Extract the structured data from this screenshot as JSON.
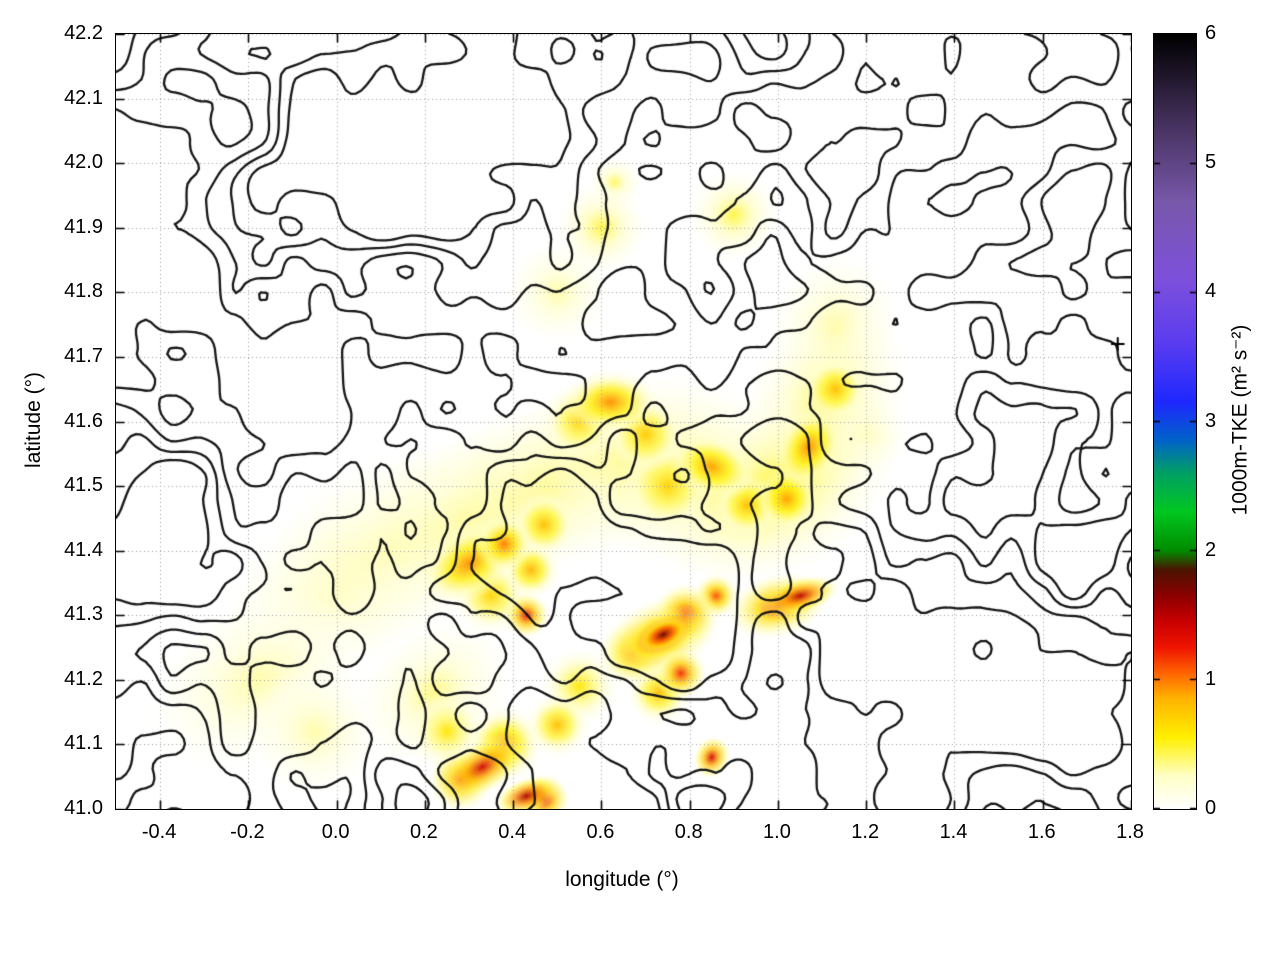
{
  "chart_data": {
    "type": "heatmap",
    "title": "",
    "xlabel": "longitude (°)",
    "ylabel": "latitude (°)",
    "xlim": [
      -0.5,
      1.8
    ],
    "ylim": [
      41.0,
      42.2
    ],
    "grid": true,
    "xticks": [
      {
        "v": -0.4,
        "label": "-0.4"
      },
      {
        "v": -0.2,
        "label": "-0.2"
      },
      {
        "v": 0.0,
        "label": "0.0"
      },
      {
        "v": 0.2,
        "label": "0.2"
      },
      {
        "v": 0.4,
        "label": "0.4"
      },
      {
        "v": 0.6,
        "label": "0.6"
      },
      {
        "v": 0.8,
        "label": "0.8"
      },
      {
        "v": 1.0,
        "label": "1.0"
      },
      {
        "v": 1.2,
        "label": "1.2"
      },
      {
        "v": 1.4,
        "label": "1.4"
      },
      {
        "v": 1.6,
        "label": "1.6"
      },
      {
        "v": 1.8,
        "label": "1.8"
      }
    ],
    "yticks": [
      {
        "v": 41.0,
        "label": "41.0"
      },
      {
        "v": 41.1,
        "label": "41.1"
      },
      {
        "v": 41.2,
        "label": "41.2"
      },
      {
        "v": 41.3,
        "label": "41.3"
      },
      {
        "v": 41.4,
        "label": "41.4"
      },
      {
        "v": 41.5,
        "label": "41.5"
      },
      {
        "v": 41.6,
        "label": "41.6"
      },
      {
        "v": 41.7,
        "label": "41.7"
      },
      {
        "v": 41.8,
        "label": "41.8"
      },
      {
        "v": 41.9,
        "label": "41.9"
      },
      {
        "v": 42.0,
        "label": "42.0"
      },
      {
        "v": 42.1,
        "label": "42.1"
      },
      {
        "v": 42.2,
        "label": "42.2"
      }
    ],
    "colorbar": {
      "label": "1000m-TKE (m² s⁻²)",
      "min": 0,
      "max": 6,
      "ticks": [
        {
          "v": 0,
          "label": "0"
        },
        {
          "v": 1,
          "label": "1"
        },
        {
          "v": 2,
          "label": "2"
        },
        {
          "v": 3,
          "label": "3"
        },
        {
          "v": 4,
          "label": "4"
        },
        {
          "v": 5,
          "label": "5"
        },
        {
          "v": 6,
          "label": "6"
        }
      ],
      "palette": [
        [
          0.0,
          "#ffffff"
        ],
        [
          0.25,
          "#ffffc8"
        ],
        [
          0.55,
          "#fff000"
        ],
        [
          0.85,
          "#ffb400"
        ],
        [
          1.05,
          "#ff6400"
        ],
        [
          1.25,
          "#f01400"
        ],
        [
          1.45,
          "#c80000"
        ],
        [
          1.65,
          "#8c0000"
        ],
        [
          1.85,
          "#4b1400"
        ],
        [
          2.0,
          "#008c00"
        ],
        [
          2.3,
          "#00c820"
        ],
        [
          2.6,
          "#00a064"
        ],
        [
          2.85,
          "#0064c8"
        ],
        [
          3.15,
          "#1e28ff"
        ],
        [
          3.6,
          "#5a3cf0"
        ],
        [
          4.1,
          "#7d50dc"
        ],
        [
          4.7,
          "#7858aa"
        ],
        [
          5.3,
          "#46325f"
        ],
        [
          6.0,
          "#000000"
        ]
      ]
    },
    "marker": {
      "x": 1.77,
      "y": 41.72,
      "symbol": "+"
    },
    "heat_blobs": [
      {
        "x": 0.12,
        "y": 41.4,
        "v": 0.35,
        "r": 0.14,
        "sx": 1.8,
        "rot": 25
      },
      {
        "x": 0.3,
        "y": 41.45,
        "v": 0.4,
        "r": 0.13,
        "sx": 1.8,
        "rot": 20
      },
      {
        "x": 0.48,
        "y": 41.5,
        "v": 0.45,
        "r": 0.13,
        "sx": 1.8,
        "rot": 15
      },
      {
        "x": 0.66,
        "y": 41.54,
        "v": 0.45,
        "r": 0.13,
        "sx": 1.8,
        "rot": 10
      },
      {
        "x": 0.84,
        "y": 41.5,
        "v": 0.45,
        "r": 0.14,
        "sx": 1.8,
        "rot": -10
      },
      {
        "x": 1.0,
        "y": 41.5,
        "v": 0.5,
        "r": 0.13,
        "sx": 1.6,
        "rot": 30
      },
      {
        "x": 1.1,
        "y": 41.62,
        "v": 0.45,
        "r": 0.12,
        "sx": 1.4,
        "rot": 60
      },
      {
        "x": 1.13,
        "y": 41.74,
        "v": 0.35,
        "r": 0.1,
        "sx": 1.2,
        "rot": 80
      },
      {
        "x": 0.0,
        "y": 41.33,
        "v": 0.3,
        "r": 0.12,
        "sx": 1.6,
        "rot": 25
      },
      {
        "x": -0.18,
        "y": 41.2,
        "v": 0.3,
        "r": 0.12,
        "sx": 1.5,
        "rot": 30
      },
      {
        "x": -0.05,
        "y": 41.12,
        "v": 0.3,
        "r": 0.1
      },
      {
        "x": 0.22,
        "y": 41.18,
        "v": 0.35,
        "r": 0.1,
        "sx": 1.3,
        "rot": 40
      },
      {
        "x": 0.62,
        "y": 41.63,
        "v": 0.95,
        "r": 0.05,
        "sx": 1.5
      },
      {
        "x": 0.55,
        "y": 41.6,
        "v": 0.7,
        "r": 0.06
      },
      {
        "x": 0.85,
        "y": 41.53,
        "v": 0.9,
        "r": 0.05,
        "sx": 1.4,
        "rot": -20
      },
      {
        "x": 0.93,
        "y": 41.47,
        "v": 0.8,
        "r": 0.05
      },
      {
        "x": 1.02,
        "y": 41.48,
        "v": 0.9,
        "r": 0.05
      },
      {
        "x": 1.07,
        "y": 41.56,
        "v": 0.95,
        "r": 0.05,
        "sx": 1.3,
        "rot": 60
      },
      {
        "x": 1.13,
        "y": 41.65,
        "v": 0.8,
        "r": 0.05
      },
      {
        "x": 0.75,
        "y": 41.5,
        "v": 0.7,
        "r": 0.07
      },
      {
        "x": 0.7,
        "y": 41.58,
        "v": 0.75,
        "r": 0.06
      },
      {
        "x": 0.3,
        "y": 41.38,
        "v": 0.95,
        "r": 0.055,
        "sx": 1.5,
        "rot": 30
      },
      {
        "x": 0.38,
        "y": 41.41,
        "v": 1.0,
        "r": 0.045
      },
      {
        "x": 0.44,
        "y": 41.37,
        "v": 0.85,
        "r": 0.045
      },
      {
        "x": 0.35,
        "y": 41.33,
        "v": 0.7,
        "r": 0.06
      },
      {
        "x": 0.47,
        "y": 41.44,
        "v": 0.8,
        "r": 0.05
      },
      {
        "x": 0.43,
        "y": 41.3,
        "v": 1.3,
        "r": 0.035
      },
      {
        "x": 0.74,
        "y": 41.27,
        "v": 1.75,
        "r": 0.022,
        "sx": 1.8,
        "rot": 25
      },
      {
        "x": 0.74,
        "y": 41.27,
        "v": 1.45,
        "r": 0.038,
        "sx": 1.8,
        "rot": 25
      },
      {
        "x": 0.73,
        "y": 41.265,
        "v": 1.1,
        "r": 0.06,
        "sx": 1.7,
        "rot": 25
      },
      {
        "x": 0.79,
        "y": 41.3,
        "v": 1.2,
        "r": 0.05
      },
      {
        "x": 0.67,
        "y": 41.24,
        "v": 1.0,
        "r": 0.05
      },
      {
        "x": 0.86,
        "y": 41.33,
        "v": 1.1,
        "r": 0.035
      },
      {
        "x": 1.05,
        "y": 41.33,
        "v": 1.5,
        "r": 0.028,
        "sx": 2.2,
        "rot": 15
      },
      {
        "x": 1.0,
        "y": 41.315,
        "v": 1.1,
        "r": 0.05,
        "sx": 1.6,
        "rot": 15
      },
      {
        "x": 0.78,
        "y": 41.21,
        "v": 1.2,
        "r": 0.04
      },
      {
        "x": 0.73,
        "y": 41.18,
        "v": 0.8,
        "r": 0.05
      },
      {
        "x": 0.33,
        "y": 41.065,
        "v": 1.4,
        "r": 0.04,
        "sx": 1.8,
        "rot": 30
      },
      {
        "x": 0.28,
        "y": 41.045,
        "v": 1.1,
        "r": 0.05
      },
      {
        "x": 0.43,
        "y": 41.02,
        "v": 1.55,
        "r": 0.028,
        "sx": 1.8,
        "rot": 20
      },
      {
        "x": 0.47,
        "y": 41.015,
        "v": 1.3,
        "r": 0.04
      },
      {
        "x": 0.38,
        "y": 41.1,
        "v": 0.9,
        "r": 0.06
      },
      {
        "x": 0.5,
        "y": 41.13,
        "v": 0.8,
        "r": 0.05
      },
      {
        "x": 0.55,
        "y": 41.19,
        "v": 0.6,
        "r": 0.06
      },
      {
        "x": 0.85,
        "y": 41.08,
        "v": 1.4,
        "r": 0.028,
        "sx": 1.2,
        "rot": 70
      },
      {
        "x": 0.25,
        "y": 41.12,
        "v": 0.6,
        "r": 0.06
      },
      {
        "x": 0.6,
        "y": 41.9,
        "v": 0.45,
        "r": 0.07
      },
      {
        "x": 0.9,
        "y": 41.92,
        "v": 0.45,
        "r": 0.07
      },
      {
        "x": 0.63,
        "y": 41.97,
        "v": 0.4,
        "r": 0.04
      },
      {
        "x": 0.5,
        "y": 41.8,
        "v": 0.3,
        "r": 0.08
      },
      {
        "x": 1.2,
        "y": 41.58,
        "v": 0.4,
        "r": 0.06
      }
    ],
    "contour_style": {
      "color": "#161616",
      "width": 2.3,
      "levels": [
        0.37,
        0.46,
        0.55,
        0.64
      ],
      "seed": 11
    }
  }
}
